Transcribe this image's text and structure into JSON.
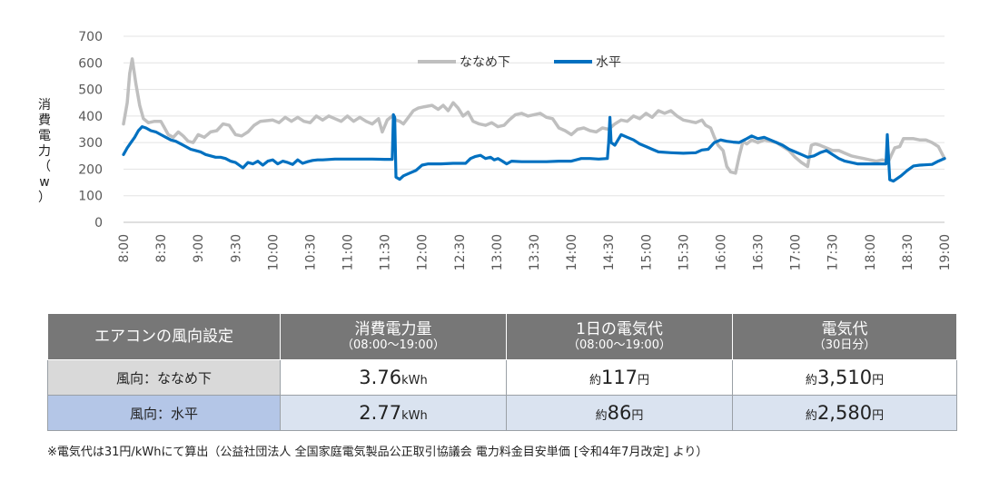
{
  "chart_data": {
    "type": "line",
    "ylabel_chars": [
      "消",
      "費",
      "電",
      "力",
      "（",
      "w",
      "）"
    ],
    "ylim": [
      0,
      700
    ],
    "yticks": [
      "0",
      "100",
      "200",
      "300",
      "400",
      "500",
      "600",
      "700"
    ],
    "xticks": [
      "8:00",
      "8:30",
      "9:00",
      "9:30",
      "10:00",
      "10:30",
      "11:00",
      "11:30",
      "12:00",
      "12:30",
      "13:00",
      "13:30",
      "14:00",
      "14:30",
      "15:00",
      "15:30",
      "16:00",
      "16:30",
      "17:00",
      "17:30",
      "18:00",
      "18:30",
      "19:00"
    ],
    "xlim_minutes": [
      480,
      1140
    ],
    "grid": "horizontal",
    "legend_position": "top",
    "series": [
      {
        "name": "ななめ下",
        "color": "#bfbfbf",
        "points": [
          [
            480,
            370
          ],
          [
            483,
            450
          ],
          [
            485,
            560
          ],
          [
            487,
            615
          ],
          [
            490,
            520
          ],
          [
            493,
            440
          ],
          [
            496,
            390
          ],
          [
            500,
            375
          ],
          [
            505,
            380
          ],
          [
            510,
            380
          ],
          [
            513,
            355
          ],
          [
            516,
            330
          ],
          [
            520,
            320
          ],
          [
            524,
            340
          ],
          [
            528,
            325
          ],
          [
            532,
            305
          ],
          [
            536,
            300
          ],
          [
            540,
            330
          ],
          [
            545,
            320
          ],
          [
            550,
            340
          ],
          [
            555,
            345
          ],
          [
            560,
            370
          ],
          [
            565,
            365
          ],
          [
            570,
            330
          ],
          [
            575,
            325
          ],
          [
            580,
            340
          ],
          [
            585,
            365
          ],
          [
            590,
            380
          ],
          [
            600,
            385
          ],
          [
            605,
            375
          ],
          [
            610,
            395
          ],
          [
            615,
            380
          ],
          [
            620,
            395
          ],
          [
            625,
            380
          ],
          [
            630,
            375
          ],
          [
            635,
            400
          ],
          [
            640,
            385
          ],
          [
            645,
            400
          ],
          [
            650,
            390
          ],
          [
            655,
            380
          ],
          [
            660,
            400
          ],
          [
            665,
            380
          ],
          [
            670,
            395
          ],
          [
            675,
            380
          ],
          [
            680,
            370
          ],
          [
            685,
            390
          ],
          [
            688,
            340
          ],
          [
            692,
            385
          ],
          [
            696,
            400
          ],
          [
            699,
            385
          ],
          [
            702,
            380
          ],
          [
            705,
            370
          ],
          [
            709,
            395
          ],
          [
            713,
            420
          ],
          [
            717,
            430
          ],
          [
            722,
            435
          ],
          [
            728,
            440
          ],
          [
            733,
            425
          ],
          [
            737,
            440
          ],
          [
            741,
            420
          ],
          [
            745,
            450
          ],
          [
            749,
            430
          ],
          [
            753,
            400
          ],
          [
            757,
            415
          ],
          [
            761,
            380
          ],
          [
            766,
            370
          ],
          [
            771,
            365
          ],
          [
            776,
            375
          ],
          [
            781,
            360
          ],
          [
            786,
            365
          ],
          [
            790,
            385
          ],
          [
            795,
            405
          ],
          [
            800,
            410
          ],
          [
            805,
            400
          ],
          [
            810,
            405
          ],
          [
            815,
            410
          ],
          [
            820,
            395
          ],
          [
            825,
            390
          ],
          [
            830,
            355
          ],
          [
            835,
            345
          ],
          [
            840,
            330
          ],
          [
            845,
            350
          ],
          [
            850,
            355
          ],
          [
            855,
            345
          ],
          [
            860,
            340
          ],
          [
            865,
            355
          ],
          [
            870,
            350
          ],
          [
            875,
            370
          ],
          [
            880,
            385
          ],
          [
            885,
            380
          ],
          [
            890,
            400
          ],
          [
            895,
            390
          ],
          [
            900,
            410
          ],
          [
            905,
            395
          ],
          [
            910,
            420
          ],
          [
            915,
            410
          ],
          [
            920,
            420
          ],
          [
            925,
            400
          ],
          [
            930,
            385
          ],
          [
            935,
            380
          ],
          [
            940,
            375
          ],
          [
            945,
            385
          ],
          [
            948,
            365
          ],
          [
            952,
            355
          ],
          [
            955,
            320
          ],
          [
            958,
            290
          ],
          [
            962,
            270
          ],
          [
            965,
            210
          ],
          [
            968,
            190
          ],
          [
            972,
            185
          ],
          [
            975,
            250
          ],
          [
            978,
            305
          ],
          [
            981,
            295
          ],
          [
            985,
            310
          ],
          [
            990,
            300
          ],
          [
            995,
            310
          ],
          [
            1000,
            305
          ],
          [
            1005,
            300
          ],
          [
            1010,
            285
          ],
          [
            1015,
            270
          ],
          [
            1020,
            245
          ],
          [
            1025,
            225
          ],
          [
            1030,
            210
          ],
          [
            1033,
            290
          ],
          [
            1036,
            295
          ],
          [
            1040,
            290
          ],
          [
            1045,
            280
          ],
          [
            1050,
            270
          ],
          [
            1055,
            270
          ],
          [
            1060,
            260
          ],
          [
            1065,
            250
          ],
          [
            1070,
            245
          ],
          [
            1075,
            240
          ],
          [
            1080,
            235
          ],
          [
            1085,
            230
          ],
          [
            1090,
            235
          ],
          [
            1095,
            230
          ],
          [
            1100,
            280
          ],
          [
            1104,
            285
          ],
          [
            1107,
            315
          ],
          [
            1110,
            315
          ],
          [
            1115,
            315
          ],
          [
            1120,
            310
          ],
          [
            1125,
            310
          ],
          [
            1130,
            300
          ],
          [
            1135,
            285
          ],
          [
            1140,
            240
          ]
        ]
      },
      {
        "name": "水平",
        "color": "#0070c0",
        "points": [
          [
            480,
            255
          ],
          [
            483,
            280
          ],
          [
            486,
            300
          ],
          [
            489,
            320
          ],
          [
            492,
            345
          ],
          [
            495,
            360
          ],
          [
            498,
            355
          ],
          [
            502,
            345
          ],
          [
            506,
            340
          ],
          [
            510,
            330
          ],
          [
            514,
            320
          ],
          [
            518,
            310
          ],
          [
            522,
            305
          ],
          [
            526,
            295
          ],
          [
            530,
            285
          ],
          [
            534,
            275
          ],
          [
            538,
            270
          ],
          [
            542,
            265
          ],
          [
            546,
            255
          ],
          [
            550,
            250
          ],
          [
            554,
            245
          ],
          [
            558,
            245
          ],
          [
            562,
            240
          ],
          [
            566,
            230
          ],
          [
            570,
            225
          ],
          [
            573,
            215
          ],
          [
            576,
            205
          ],
          [
            580,
            225
          ],
          [
            584,
            220
          ],
          [
            588,
            230
          ],
          [
            592,
            215
          ],
          [
            596,
            230
          ],
          [
            600,
            235
          ],
          [
            604,
            220
          ],
          [
            608,
            230
          ],
          [
            612,
            225
          ],
          [
            616,
            218
          ],
          [
            620,
            235
          ],
          [
            624,
            222
          ],
          [
            628,
            228
          ],
          [
            632,
            233
          ],
          [
            636,
            235
          ],
          [
            640,
            235
          ],
          [
            650,
            238
          ],
          [
            660,
            238
          ],
          [
            670,
            238
          ],
          [
            680,
            238
          ],
          [
            690,
            237
          ],
          [
            696,
            237
          ],
          [
            697,
            405
          ],
          [
            698,
            395
          ],
          [
            699,
            170
          ],
          [
            702,
            162
          ],
          [
            705,
            175
          ],
          [
            710,
            185
          ],
          [
            715,
            195
          ],
          [
            720,
            215
          ],
          [
            725,
            220
          ],
          [
            735,
            220
          ],
          [
            745,
            222
          ],
          [
            755,
            222
          ],
          [
            759,
            240
          ],
          [
            763,
            248
          ],
          [
            767,
            252
          ],
          [
            771,
            240
          ],
          [
            775,
            245
          ],
          [
            778,
            235
          ],
          [
            781,
            240
          ],
          [
            784,
            232
          ],
          [
            788,
            220
          ],
          [
            792,
            230
          ],
          [
            800,
            228
          ],
          [
            810,
            228
          ],
          [
            820,
            228
          ],
          [
            830,
            230
          ],
          [
            840,
            230
          ],
          [
            848,
            240
          ],
          [
            855,
            240
          ],
          [
            862,
            238
          ],
          [
            869,
            240
          ],
          [
            870,
            300
          ],
          [
            871,
            395
          ],
          [
            872,
            300
          ],
          [
            875,
            290
          ],
          [
            880,
            330
          ],
          [
            885,
            320
          ],
          [
            890,
            310
          ],
          [
            895,
            295
          ],
          [
            900,
            285
          ],
          [
            905,
            275
          ],
          [
            910,
            265
          ],
          [
            920,
            262
          ],
          [
            930,
            260
          ],
          [
            940,
            262
          ],
          [
            945,
            272
          ],
          [
            950,
            275
          ],
          [
            955,
            300
          ],
          [
            960,
            310
          ],
          [
            965,
            305
          ],
          [
            970,
            302
          ],
          [
            975,
            300
          ],
          [
            980,
            312
          ],
          [
            985,
            325
          ],
          [
            990,
            315
          ],
          [
            995,
            320
          ],
          [
            1000,
            310
          ],
          [
            1005,
            300
          ],
          [
            1010,
            290
          ],
          [
            1015,
            275
          ],
          [
            1020,
            265
          ],
          [
            1025,
            255
          ],
          [
            1030,
            245
          ],
          [
            1035,
            250
          ],
          [
            1040,
            262
          ],
          [
            1045,
            270
          ],
          [
            1050,
            255
          ],
          [
            1055,
            240
          ],
          [
            1060,
            230
          ],
          [
            1065,
            225
          ],
          [
            1070,
            220
          ],
          [
            1080,
            220
          ],
          [
            1090,
            220
          ],
          [
            1093,
            220
          ],
          [
            1094,
            330
          ],
          [
            1096,
            160
          ],
          [
            1099,
            155
          ],
          [
            1105,
            175
          ],
          [
            1110,
            195
          ],
          [
            1115,
            212
          ],
          [
            1120,
            215
          ],
          [
            1130,
            218
          ],
          [
            1135,
            230
          ],
          [
            1140,
            240
          ],
          [
            1145,
            240
          ],
          [
            1150,
            240
          ],
          [
            1155,
            235
          ],
          [
            1160,
            230
          ],
          [
            1165,
            230
          ],
          [
            1168,
            225
          ],
          [
            1170,
            210
          ],
          [
            1173,
            225
          ],
          [
            1176,
            215
          ],
          [
            1180,
            225
          ],
          [
            1185,
            225
          ]
        ]
      }
    ]
  },
  "table": {
    "headers": [
      {
        "title": "エアコンの風向設定",
        "sub": ""
      },
      {
        "title": "消費電力量",
        "sub": "（08:00～19:00）"
      },
      {
        "title": "1日の電気代",
        "sub": "（08:00～19:00）"
      },
      {
        "title": "電気代",
        "sub": "（30日分）"
      }
    ],
    "rows": [
      {
        "label": "風向：ななめ下",
        "energy_value": "3.76",
        "energy_unit": "kWh",
        "daily_prefix": "約",
        "daily_value": "117",
        "daily_unit": "円",
        "monthly_prefix": "約",
        "monthly_value": "3,510",
        "monthly_unit": "円"
      },
      {
        "label": "風向：水平",
        "energy_value": "2.77",
        "energy_unit": "kWh",
        "daily_prefix": "約",
        "daily_value": "86",
        "daily_unit": "円",
        "monthly_prefix": "約",
        "monthly_value": "2,580",
        "monthly_unit": "円"
      }
    ]
  },
  "footnote": "※電気代は31円/kWhにて算出（公益社団法人 全国家庭電気製品公正取引協議会 電力料金目安単価 [令和4年7月改定] より）"
}
